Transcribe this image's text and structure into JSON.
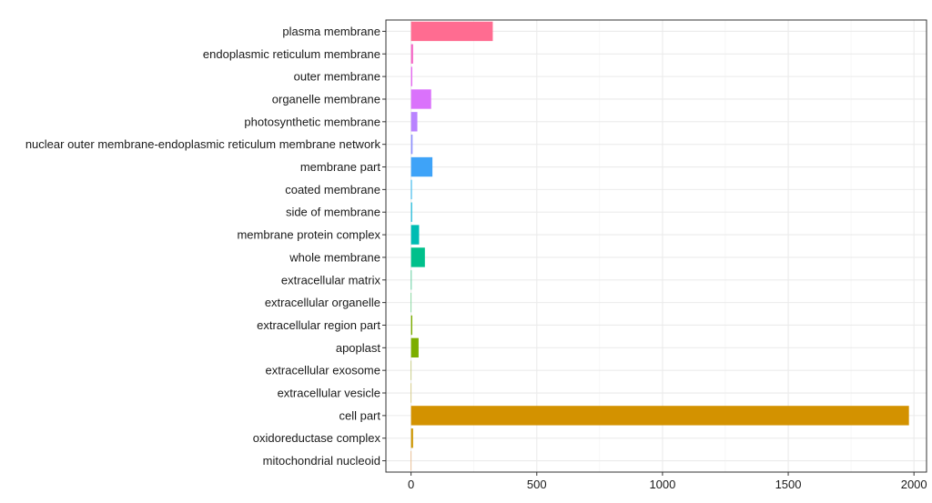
{
  "chart_data": {
    "type": "bar",
    "orientation": "horizontal",
    "title": "",
    "xlabel": "",
    "ylabel": "",
    "xlim": [
      -100,
      2050
    ],
    "x_ticks": [
      "0",
      "500",
      "1000",
      "1500",
      "2000"
    ],
    "grid": true,
    "legend": "none",
    "categories": [
      "plasma membrane",
      "endoplasmic reticulum membrane",
      "outer membrane",
      "organelle membrane",
      "photosynthetic membrane",
      "nuclear outer membrane-endoplasmic reticulum membrane network",
      "membrane part",
      "coated membrane",
      "side of membrane",
      "membrane protein complex",
      "whole membrane",
      "extracellular matrix",
      "extracellular organelle",
      "extracellular region part",
      "apoplast",
      "extracellular exosome",
      "extracellular vesicle",
      "cell part",
      "oxidoreductase complex",
      "mitochondrial nucleoid"
    ],
    "values": [
      325,
      8,
      5,
      80,
      25,
      6,
      85,
      3,
      4,
      32,
      55,
      2,
      1,
      5,
      30,
      1,
      1,
      1980,
      8,
      0
    ],
    "colors": [
      "#FF6C91",
      "#F564C5",
      "#E76BF3",
      "#DA72FB",
      "#B983FF",
      "#8F91FF",
      "#3EA3F8",
      "#00ABEF",
      "#00B4D8",
      "#00BCB3",
      "#00C08B",
      "#00BE6C",
      "#00C039",
      "#7CAE00",
      "#7CAE00",
      "#9CA700",
      "#B99E00",
      "#D39200",
      "#CD9600",
      "#E7851E"
    ]
  }
}
